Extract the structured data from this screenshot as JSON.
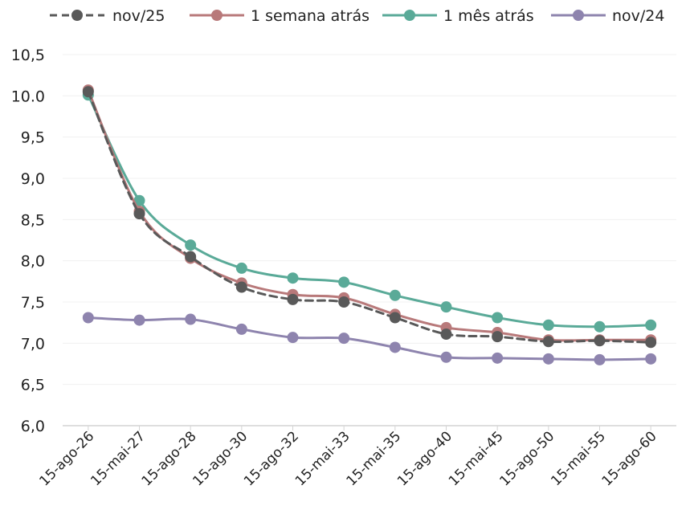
{
  "chart_data": {
    "type": "line",
    "title": "",
    "xlabel": "",
    "ylabel": "",
    "categories": [
      "15-ago-26",
      "15-mai-27",
      "15-ago-28",
      "15-ago-30",
      "15-ago-32",
      "15-mai-33",
      "15-mai-35",
      "15-ago-40",
      "15-mai-45",
      "15-ago-50",
      "15-mai-55",
      "15-ago-60"
    ],
    "ylim": [
      6.0,
      10.5
    ],
    "yticks": [
      "6,0",
      "6,5",
      "7,0",
      "7,5",
      "8,0",
      "8,5",
      "9,0",
      "9,5",
      "10.0",
      "10,5"
    ],
    "grid": true,
    "legend_position": "top",
    "series": [
      {
        "name": "nov/25",
        "color": "#595959",
        "dashed": true,
        "values": [
          10.05,
          8.57,
          8.05,
          7.68,
          7.53,
          7.5,
          7.31,
          7.11,
          7.08,
          7.02,
          7.03,
          7.01
        ]
      },
      {
        "name": "1 semana atrás",
        "color": "#B8797A",
        "dashed": false,
        "values": [
          10.07,
          8.6,
          8.03,
          7.73,
          7.59,
          7.55,
          7.35,
          7.19,
          7.13,
          7.04,
          7.04,
          7.04
        ]
      },
      {
        "name": "1 mês atrás",
        "color": "#5AAA98",
        "dashed": false,
        "values": [
          10.01,
          8.73,
          8.19,
          7.91,
          7.79,
          7.74,
          7.58,
          7.44,
          7.31,
          7.22,
          7.2,
          7.22
        ]
      },
      {
        "name": "nov/24",
        "color": "#8E84AE",
        "dashed": false,
        "values": [
          7.31,
          7.28,
          7.29,
          7.17,
          7.07,
          7.06,
          6.95,
          6.83,
          6.82,
          6.81,
          6.8,
          6.81
        ]
      }
    ]
  }
}
